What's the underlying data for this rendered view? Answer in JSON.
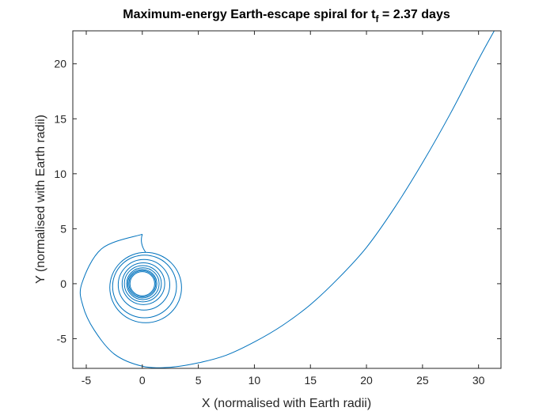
{
  "chart_data": {
    "type": "line",
    "title": "Maximum-energy Earth-escape spiral for t",
    "title_subscript": "f",
    "title_suffix": " = 2.37 days",
    "xlabel": "X (normalised with Earth radii)",
    "ylabel": "Y (normalised with Earth radii)",
    "xlim": [
      -6.2,
      32
    ],
    "ylim": [
      -7.7,
      23
    ],
    "xticks": [
      -5,
      0,
      5,
      10,
      15,
      20,
      25,
      30
    ],
    "yticks": [
      -5,
      0,
      5,
      10,
      15,
      20
    ],
    "xtick_labels": [
      "-5",
      "0",
      "5",
      "10",
      "15",
      "20",
      "25",
      "30"
    ],
    "ytick_labels": [
      "-5",
      "0",
      "5",
      "10",
      "15",
      "20"
    ],
    "grid": false,
    "box": true,
    "series": [
      {
        "color": "#0072BD",
        "description_rings": [
          {
            "cx": 0.0,
            "cy": 0.0,
            "r": 1.1
          },
          {
            "cx": 0.0,
            "cy": 0.0,
            "r": 1.2
          },
          {
            "cx": 0.0,
            "cy": 0.0,
            "r": 1.3
          },
          {
            "cx": 0.05,
            "cy": 0.0,
            "r": 1.45
          },
          {
            "cx": 0.05,
            "cy": 0.0,
            "r": 1.65
          },
          {
            "cx": 0.1,
            "cy": 0.0,
            "r": 1.9
          },
          {
            "cx": 0.15,
            "cy": -0.1,
            "r": 2.3
          },
          {
            "cx": 0.2,
            "cy": -0.25,
            "r": 2.85
          },
          {
            "cx": 0.3,
            "cy": -0.35,
            "r": 3.2
          }
        ],
        "x": [
          0.0,
          -3.6,
          -5.4,
          -5.3,
          -4.3,
          -2.5,
          0.0,
          2.5,
          5.0,
          7.5,
          10.0,
          12.5,
          15.0,
          17.5,
          20.0,
          22.5,
          25.0,
          27.5,
          30.0,
          31.4
        ],
        "y": [
          4.5,
          3.2,
          0.0,
          -2.0,
          -4.2,
          -6.4,
          -7.5,
          -7.6,
          -7.2,
          -6.5,
          -5.3,
          -3.8,
          -1.9,
          0.5,
          3.3,
          6.9,
          11.0,
          15.5,
          20.4,
          23.0
        ]
      }
    ]
  }
}
